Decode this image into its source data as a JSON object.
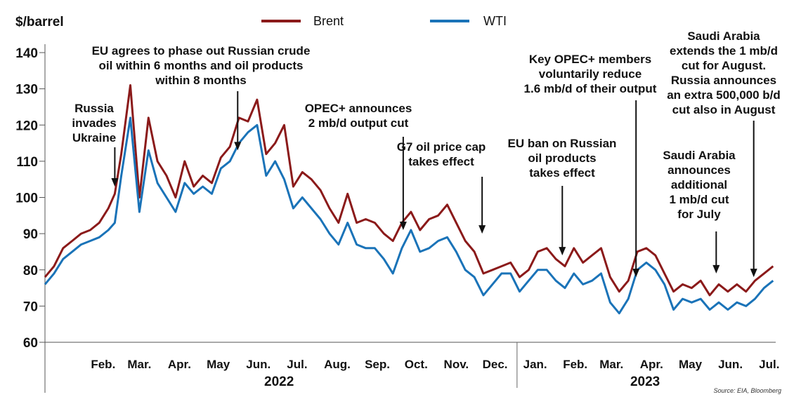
{
  "chart_data": {
    "type": "line",
    "ylabel": "$/barrel",
    "ylim": [
      60,
      140
    ],
    "yticks": [
      60,
      70,
      80,
      90,
      100,
      110,
      120,
      130,
      140
    ],
    "xlim": [
      "2022-01-01",
      "2023-07-20"
    ],
    "months": [
      {
        "label": "Feb.",
        "date": "2022-02-15"
      },
      {
        "label": "Mar.",
        "date": "2022-03-15"
      },
      {
        "label": "Apr.",
        "date": "2022-04-15"
      },
      {
        "label": "May",
        "date": "2022-05-15"
      },
      {
        "label": "Jun.",
        "date": "2022-06-15"
      },
      {
        "label": "Jul.",
        "date": "2022-07-15"
      },
      {
        "label": "Aug.",
        "date": "2022-08-15"
      },
      {
        "label": "Sep.",
        "date": "2022-09-15"
      },
      {
        "label": "Oct.",
        "date": "2022-10-15"
      },
      {
        "label": "Nov.",
        "date": "2022-11-15"
      },
      {
        "label": "Dec.",
        "date": "2022-12-15"
      },
      {
        "label": "Jan.",
        "date": "2023-01-15"
      },
      {
        "label": "Feb.",
        "date": "2023-02-15"
      },
      {
        "label": "Mar.",
        "date": "2023-03-15"
      },
      {
        "label": "Apr.",
        "date": "2023-04-15"
      },
      {
        "label": "May",
        "date": "2023-05-15"
      },
      {
        "label": "Jun.",
        "date": "2023-06-15"
      },
      {
        "label": "Jul.",
        "date": "2023-07-15"
      }
    ],
    "year_divider": "2023-01-01",
    "years": [
      {
        "label": "2022",
        "date": "2022-07-01"
      },
      {
        "label": "2023",
        "date": "2023-04-10"
      }
    ],
    "series": [
      {
        "name": "Brent",
        "color": "#8b1a1a",
        "points": [
          [
            "2022-01-01",
            78
          ],
          [
            "2022-01-08",
            81
          ],
          [
            "2022-01-15",
            86
          ],
          [
            "2022-01-22",
            88
          ],
          [
            "2022-01-29",
            90
          ],
          [
            "2022-02-05",
            91
          ],
          [
            "2022-02-12",
            93
          ],
          [
            "2022-02-19",
            97
          ],
          [
            "2022-02-24",
            101
          ],
          [
            "2022-03-01",
            112
          ],
          [
            "2022-03-08",
            131
          ],
          [
            "2022-03-15",
            100
          ],
          [
            "2022-03-22",
            122
          ],
          [
            "2022-03-29",
            110
          ],
          [
            "2022-04-05",
            106
          ],
          [
            "2022-04-12",
            100
          ],
          [
            "2022-04-19",
            110
          ],
          [
            "2022-04-26",
            103
          ],
          [
            "2022-05-03",
            106
          ],
          [
            "2022-05-10",
            104
          ],
          [
            "2022-05-17",
            111
          ],
          [
            "2022-05-24",
            114
          ],
          [
            "2022-05-31",
            122
          ],
          [
            "2022-06-07",
            121
          ],
          [
            "2022-06-14",
            127
          ],
          [
            "2022-06-21",
            112
          ],
          [
            "2022-06-28",
            115
          ],
          [
            "2022-07-05",
            120
          ],
          [
            "2022-07-12",
            103
          ],
          [
            "2022-07-19",
            107
          ],
          [
            "2022-07-26",
            105
          ],
          [
            "2022-08-02",
            102
          ],
          [
            "2022-08-09",
            97
          ],
          [
            "2022-08-16",
            93
          ],
          [
            "2022-08-23",
            101
          ],
          [
            "2022-08-30",
            93
          ],
          [
            "2022-09-06",
            94
          ],
          [
            "2022-09-13",
            93
          ],
          [
            "2022-09-20",
            90
          ],
          [
            "2022-09-27",
            88
          ],
          [
            "2022-10-04",
            93
          ],
          [
            "2022-10-11",
            96
          ],
          [
            "2022-10-18",
            91
          ],
          [
            "2022-10-25",
            94
          ],
          [
            "2022-11-01",
            95
          ],
          [
            "2022-11-08",
            98
          ],
          [
            "2022-11-15",
            93
          ],
          [
            "2022-11-22",
            88
          ],
          [
            "2022-11-29",
            85
          ],
          [
            "2022-12-06",
            79
          ],
          [
            "2022-12-13",
            80
          ],
          [
            "2022-12-20",
            81
          ],
          [
            "2022-12-27",
            82
          ],
          [
            "2023-01-03",
            78
          ],
          [
            "2023-01-10",
            80
          ],
          [
            "2023-01-17",
            85
          ],
          [
            "2023-01-24",
            86
          ],
          [
            "2023-01-31",
            83
          ],
          [
            "2023-02-07",
            81
          ],
          [
            "2023-02-14",
            86
          ],
          [
            "2023-02-21",
            82
          ],
          [
            "2023-02-28",
            84
          ],
          [
            "2023-03-07",
            86
          ],
          [
            "2023-03-14",
            78
          ],
          [
            "2023-03-21",
            74
          ],
          [
            "2023-03-28",
            77
          ],
          [
            "2023-04-04",
            85
          ],
          [
            "2023-04-11",
            86
          ],
          [
            "2023-04-18",
            84
          ],
          [
            "2023-04-25",
            79
          ],
          [
            "2023-05-02",
            74
          ],
          [
            "2023-05-09",
            76
          ],
          [
            "2023-05-16",
            75
          ],
          [
            "2023-05-23",
            77
          ],
          [
            "2023-05-30",
            73
          ],
          [
            "2023-06-06",
            76
          ],
          [
            "2023-06-13",
            74
          ],
          [
            "2023-06-20",
            76
          ],
          [
            "2023-06-27",
            74
          ],
          [
            "2023-07-04",
            77
          ],
          [
            "2023-07-11",
            79
          ],
          [
            "2023-07-18",
            81
          ]
        ]
      },
      {
        "name": "WTI",
        "color": "#1a73b8",
        "points": [
          [
            "2022-01-01",
            76
          ],
          [
            "2022-01-08",
            79
          ],
          [
            "2022-01-15",
            83
          ],
          [
            "2022-01-22",
            85
          ],
          [
            "2022-01-29",
            87
          ],
          [
            "2022-02-05",
            88
          ],
          [
            "2022-02-12",
            89
          ],
          [
            "2022-02-19",
            91
          ],
          [
            "2022-02-24",
            93
          ],
          [
            "2022-03-01",
            106
          ],
          [
            "2022-03-08",
            122
          ],
          [
            "2022-03-15",
            96
          ],
          [
            "2022-03-22",
            113
          ],
          [
            "2022-03-29",
            104
          ],
          [
            "2022-04-05",
            100
          ],
          [
            "2022-04-12",
            96
          ],
          [
            "2022-04-19",
            104
          ],
          [
            "2022-04-26",
            101
          ],
          [
            "2022-05-03",
            103
          ],
          [
            "2022-05-10",
            101
          ],
          [
            "2022-05-17",
            108
          ],
          [
            "2022-05-24",
            110
          ],
          [
            "2022-05-31",
            115
          ],
          [
            "2022-06-07",
            118
          ],
          [
            "2022-06-14",
            120
          ],
          [
            "2022-06-21",
            106
          ],
          [
            "2022-06-28",
            110
          ],
          [
            "2022-07-05",
            105
          ],
          [
            "2022-07-12",
            97
          ],
          [
            "2022-07-19",
            100
          ],
          [
            "2022-07-26",
            97
          ],
          [
            "2022-08-02",
            94
          ],
          [
            "2022-08-09",
            90
          ],
          [
            "2022-08-16",
            87
          ],
          [
            "2022-08-23",
            93
          ],
          [
            "2022-08-30",
            87
          ],
          [
            "2022-09-06",
            86
          ],
          [
            "2022-09-13",
            86
          ],
          [
            "2022-09-20",
            83
          ],
          [
            "2022-09-27",
            79
          ],
          [
            "2022-10-04",
            86
          ],
          [
            "2022-10-11",
            91
          ],
          [
            "2022-10-18",
            85
          ],
          [
            "2022-10-25",
            86
          ],
          [
            "2022-11-01",
            88
          ],
          [
            "2022-11-08",
            89
          ],
          [
            "2022-11-15",
            85
          ],
          [
            "2022-11-22",
            80
          ],
          [
            "2022-11-29",
            78
          ],
          [
            "2022-12-06",
            73
          ],
          [
            "2022-12-13",
            76
          ],
          [
            "2022-12-20",
            79
          ],
          [
            "2022-12-27",
            79
          ],
          [
            "2023-01-03",
            74
          ],
          [
            "2023-01-10",
            77
          ],
          [
            "2023-01-17",
            80
          ],
          [
            "2023-01-24",
            80
          ],
          [
            "2023-01-31",
            77
          ],
          [
            "2023-02-07",
            75
          ],
          [
            "2023-02-14",
            79
          ],
          [
            "2023-02-21",
            76
          ],
          [
            "2023-02-28",
            77
          ],
          [
            "2023-03-07",
            79
          ],
          [
            "2023-03-14",
            71
          ],
          [
            "2023-03-21",
            68
          ],
          [
            "2023-03-28",
            72
          ],
          [
            "2023-04-04",
            80
          ],
          [
            "2023-04-11",
            82
          ],
          [
            "2023-04-18",
            80
          ],
          [
            "2023-04-25",
            76
          ],
          [
            "2023-05-02",
            69
          ],
          [
            "2023-05-09",
            72
          ],
          [
            "2023-05-16",
            71
          ],
          [
            "2023-05-23",
            72
          ],
          [
            "2023-05-30",
            69
          ],
          [
            "2023-06-06",
            71
          ],
          [
            "2023-06-13",
            69
          ],
          [
            "2023-06-20",
            71
          ],
          [
            "2023-06-27",
            70
          ],
          [
            "2023-07-04",
            72
          ],
          [
            "2023-07-11",
            75
          ],
          [
            "2023-07-18",
            77
          ]
        ]
      }
    ],
    "annotations": [
      {
        "lines": [
          "Russia",
          "invades",
          "Ukraine"
        ],
        "date": "2022-02-24",
        "value": 103
      },
      {
        "lines": [
          "EU agrees to phase out Russian crude",
          "oil within 6 months and oil products",
          "within 8 months"
        ],
        "date": "2022-05-30",
        "value": 113
      },
      {
        "lines": [
          "OPEC+ announces",
          "2 mb/d output cut"
        ],
        "date": "2022-10-05",
        "value": 91
      },
      {
        "lines": [
          "G7 oil price cap",
          "takes effect"
        ],
        "date": "2022-12-05",
        "value": 90
      },
      {
        "lines": [
          "EU ban on Russian",
          "oil products",
          "takes effect"
        ],
        "date": "2023-02-05",
        "value": 84
      },
      {
        "lines": [
          "Key OPEC+ members",
          "voluntarily reduce",
          "1.6 mb/d of their output"
        ],
        "date": "2023-04-03",
        "value": 78
      },
      {
        "lines": [
          "Saudi Arabia",
          "announces",
          "additional",
          "1 mb/d cut",
          "for July"
        ],
        "date": "2023-06-04",
        "value": 79
      },
      {
        "lines": [
          "Saudi Arabia",
          "extends the 1 mb/d",
          "cut for August.",
          "Russia announces",
          "an extra 500,000 b/d",
          "cut also in August"
        ],
        "date": "2023-07-03",
        "value": 78
      }
    ],
    "legend": "top-center",
    "grid": false,
    "source": "Source: EIA, Bloomberg"
  }
}
